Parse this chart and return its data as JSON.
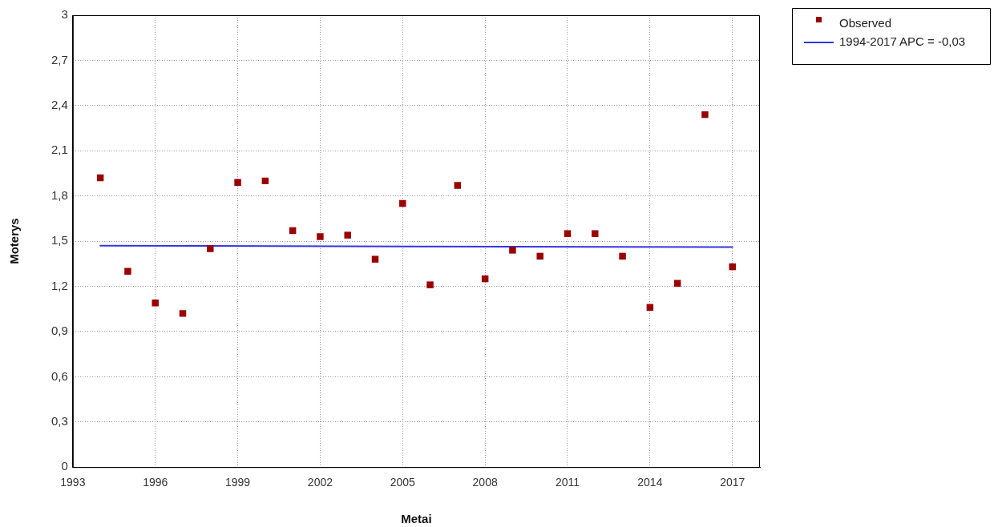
{
  "chart_data": {
    "type": "scatter",
    "xlabel": "Metai",
    "ylabel": "Moterys",
    "x": [
      1994,
      1995,
      1996,
      1997,
      1998,
      1999,
      2000,
      2001,
      2002,
      2003,
      2004,
      2005,
      2006,
      2007,
      2008,
      2009,
      2010,
      2011,
      2012,
      2013,
      2014,
      2015,
      2016,
      2017
    ],
    "series": [
      {
        "name": "Observed",
        "color": "#9a0000",
        "values": [
          1.92,
          1.3,
          1.09,
          1.02,
          1.45,
          1.89,
          1.9,
          1.57,
          1.53,
          1.54,
          1.38,
          1.75,
          1.21,
          1.87,
          1.25,
          1.44,
          1.4,
          1.55,
          1.55,
          1.4,
          1.06,
          1.22,
          2.34,
          1.33
        ]
      },
      {
        "name": "1994-2017 APC = -0,03",
        "type": "line",
        "color": "#3535e0",
        "x": [
          1994,
          2017
        ],
        "values": [
          1.47,
          1.46
        ],
        "marker": "none"
      }
    ],
    "xlim": [
      1993,
      2018
    ],
    "xticks": [
      1993,
      1996,
      1999,
      2002,
      2005,
      2008,
      2011,
      2014,
      2017
    ],
    "ylim": [
      0,
      3
    ],
    "yticks": [
      0,
      {
        "value": 0.3,
        "label": "0,3"
      },
      {
        "value": 0.6,
        "label": "0,6"
      },
      {
        "value": 0.9,
        "label": "0,9"
      },
      {
        "value": 1.2,
        "label": "1,2"
      },
      {
        "value": 1.5,
        "label": "1,5"
      },
      {
        "value": 1.8,
        "label": "1,8"
      },
      {
        "value": 2.1,
        "label": "2,1"
      },
      {
        "value": 2.4,
        "label": "2,4"
      },
      {
        "value": 2.7,
        "label": "2,7"
      },
      3
    ],
    "grid": true,
    "legend": "top right",
    "marker": "square",
    "line_style": "solid"
  }
}
